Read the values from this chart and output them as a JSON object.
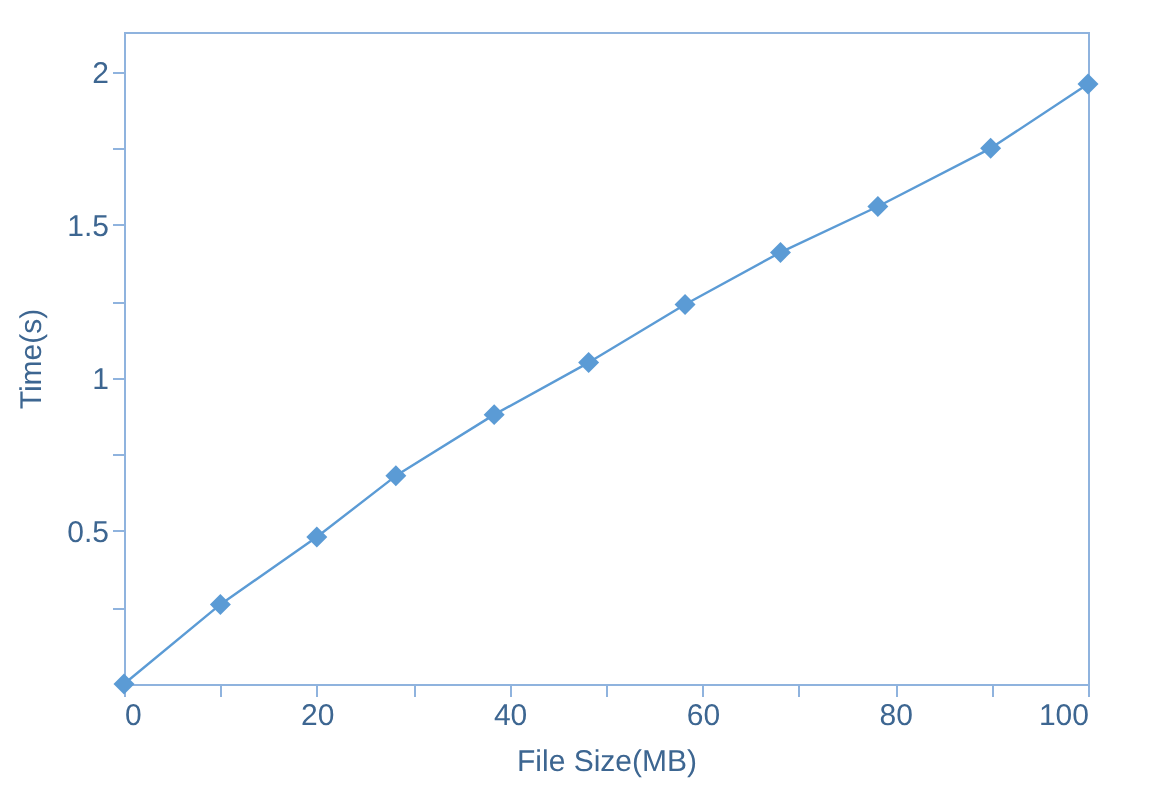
{
  "chart_data": {
    "type": "line",
    "xlabel": "File Size(MB)",
    "ylabel": "Time(s)",
    "x": [
      0,
      10,
      20,
      28.2,
      38.4,
      48.2,
      58.2,
      68.1,
      78.2,
      89.9,
      100
    ],
    "series": [
      {
        "color": "#5b9bd5",
        "values": [
          0,
          0.26,
          0.48,
          0.68,
          0.88,
          1.05,
          1.24,
          1.41,
          1.56,
          1.75,
          1.96
        ]
      }
    ],
    "marker": "diamond",
    "line_style": "solid",
    "grid": false,
    "xlim": [
      0,
      100
    ],
    "xticks": [
      0,
      {
        "value": 10,
        "label": null
      },
      20,
      {
        "value": 30,
        "label": null
      },
      40,
      {
        "value": 50,
        "label": null
      },
      60,
      {
        "value": 70,
        "label": null
      },
      80,
      {
        "value": 90,
        "label": null
      },
      100
    ],
    "ylim": [
      0,
      2.13
    ],
    "yticks": [
      {
        "value": 0.25,
        "label": null
      },
      0.5,
      {
        "value": 0.75,
        "label": null
      },
      1,
      {
        "value": 1.25,
        "label": null
      },
      1.5,
      {
        "value": 1.75,
        "label": null
      },
      2
    ]
  }
}
